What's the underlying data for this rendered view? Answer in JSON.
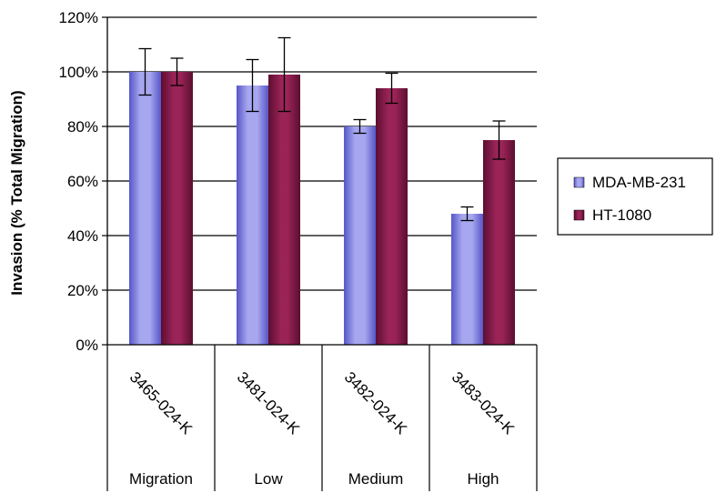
{
  "chart_data": {
    "type": "bar",
    "ylabel": "Invasion (% Total Migration)",
    "ylim": [
      0,
      120
    ],
    "yticks": [
      0,
      20,
      40,
      60,
      80,
      100,
      120
    ],
    "ytick_labels": [
      "0%",
      "20%",
      "40%",
      "60%",
      "80%",
      "100%",
      "120%"
    ],
    "grid": true,
    "legend_position": "right",
    "categories": [
      {
        "code": "3465-024-K",
        "group": "Migration"
      },
      {
        "code": "3481-024-K",
        "group": "Low"
      },
      {
        "code": "3482-024-K",
        "group": "Medium"
      },
      {
        "code": "3483-024-K",
        "group": "High"
      }
    ],
    "series": [
      {
        "name": "MDA-MB-231",
        "color": "#8C8CE6",
        "values": [
          100,
          95,
          80,
          48
        ],
        "errors": [
          8.5,
          9.5,
          2.5,
          2.5
        ]
      },
      {
        "name": "HT-1080",
        "color": "#8B1A4A",
        "values": [
          100,
          99,
          94,
          75
        ],
        "errors": [
          5,
          13.5,
          5.5,
          7
        ]
      }
    ]
  }
}
